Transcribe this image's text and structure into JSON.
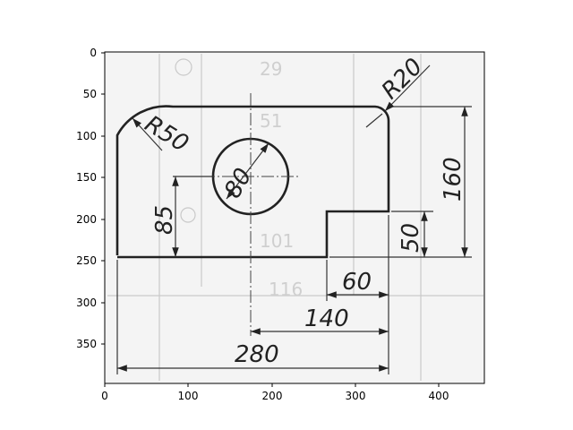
{
  "axes": {
    "x_ticks": [
      "0",
      "100",
      "200",
      "300",
      "400"
    ],
    "y_ticks": [
      "0",
      "50",
      "100",
      "150",
      "200",
      "250",
      "300",
      "350"
    ]
  },
  "dimensions": {
    "r50": "R50",
    "r20": "R20",
    "d80": "80",
    "d85": "85",
    "d160": "160",
    "d50": "50",
    "d60": "60",
    "d140": "140",
    "d280": "280"
  },
  "background_marks": {
    "t1": "29",
    "t2": "51",
    "t3": "101",
    "t4": "116"
  }
}
